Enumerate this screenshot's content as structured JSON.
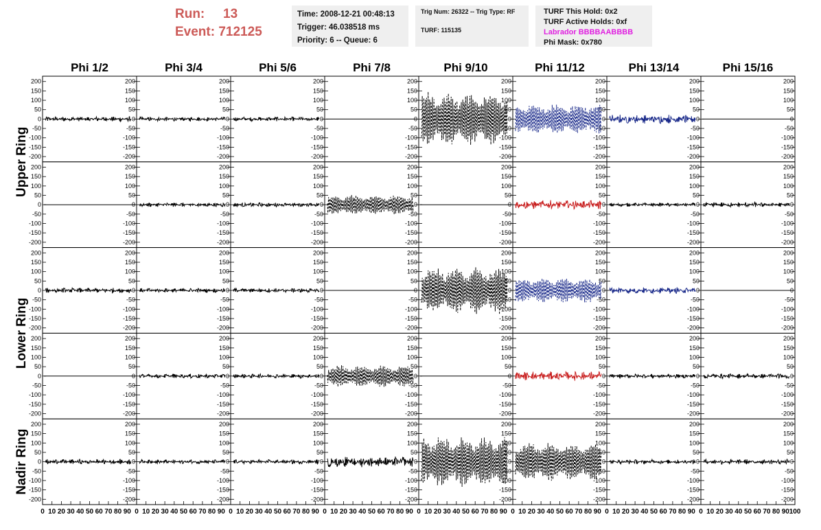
{
  "header": {
    "run_label": "Run:",
    "run_value": "13",
    "event_label": "Event:",
    "event_value": "712125"
  },
  "info_box_1": {
    "line1": "Time: 2008-12-21 00:48:13",
    "line2": "Trigger: 46.038518 ms",
    "line3": "Priority: 6 -- Queue: 6"
  },
  "info_box_2": {
    "line1": "Trig Num: 26322 -- Trig Type: RF",
    "line2": "TURF: 115135"
  },
  "info_box_3": {
    "line1": "TURF This Hold: 0x2",
    "line2": "TURF Active Holds: 0xf",
    "line3": "Labrador BBBBAABBBB",
    "line4": "Phi Mask: 0x780"
  },
  "colors": {
    "title": "#cc5a57",
    "labrador": "#e020e0",
    "blue": "#1a2a8a",
    "red": "#c81e1e",
    "black": "#000000"
  },
  "chart_data": {
    "type": "line",
    "columns": [
      "Phi 1/2",
      "Phi 3/4",
      "Phi 5/6",
      "Phi 7/8",
      "Phi 9/10",
      "Phi 11/12",
      "Phi 13/14",
      "Phi 15/16"
    ],
    "row_groups": [
      "Upper Ring",
      "Lower Ring",
      "Nadir Ring"
    ],
    "rows": 5,
    "ylim": [
      -210,
      210
    ],
    "yticks": [
      200,
      150,
      100,
      50,
      0,
      -50,
      -100,
      -150,
      -200
    ],
    "xlim": [
      0,
      100
    ],
    "xticks": [
      0,
      10,
      20,
      30,
      40,
      50,
      60,
      70,
      80,
      90,
      100
    ],
    "grid": [
      [
        {
          "style": "solid",
          "color": "black",
          "amp": 14
        },
        {
          "style": "solid",
          "color": "black",
          "amp": 12
        },
        {
          "style": "solid",
          "color": "black",
          "amp": 12
        },
        {
          "style": "flat",
          "color": "black",
          "amp": 0
        },
        {
          "style": "dashed",
          "color": "black",
          "amp": 150
        },
        {
          "style": "dashed",
          "color": "blue",
          "amp": 85
        },
        {
          "style": "solid",
          "color": "blue",
          "amp": 25
        },
        {
          "style": "flat",
          "color": "black",
          "amp": 0
        }
      ],
      [
        {
          "style": "flat",
          "color": "black",
          "amp": 0
        },
        {
          "style": "solid",
          "color": "black",
          "amp": 12
        },
        {
          "style": "solid",
          "color": "black",
          "amp": 12
        },
        {
          "style": "dashed",
          "color": "black",
          "amp": 55
        },
        {
          "style": "flat",
          "color": "black",
          "amp": 0
        },
        {
          "style": "solid",
          "color": "red",
          "amp": 25
        },
        {
          "style": "solid",
          "color": "black",
          "amp": 10
        },
        {
          "style": "solid",
          "color": "black",
          "amp": 14
        }
      ],
      [
        {
          "style": "solid",
          "color": "black",
          "amp": 14
        },
        {
          "style": "solid",
          "color": "black",
          "amp": 12
        },
        {
          "style": "solid",
          "color": "black",
          "amp": 12
        },
        {
          "style": "flat",
          "color": "black",
          "amp": 0
        },
        {
          "style": "dashed",
          "color": "black",
          "amp": 130
        },
        {
          "style": "dashed",
          "color": "blue",
          "amp": 70
        },
        {
          "style": "solid",
          "color": "blue",
          "amp": 18
        },
        {
          "style": "flat",
          "color": "black",
          "amp": 0
        }
      ],
      [
        {
          "style": "flat",
          "color": "black",
          "amp": 0
        },
        {
          "style": "solid",
          "color": "black",
          "amp": 12
        },
        {
          "style": "solid",
          "color": "black",
          "amp": 12
        },
        {
          "style": "dashed",
          "color": "black",
          "amp": 60
        },
        {
          "style": "flat",
          "color": "black",
          "amp": 0
        },
        {
          "style": "solid",
          "color": "red",
          "amp": 25
        },
        {
          "style": "solid",
          "color": "black",
          "amp": 12
        },
        {
          "style": "solid",
          "color": "black",
          "amp": 14
        }
      ],
      [
        {
          "style": "solid",
          "color": "black",
          "amp": 14
        },
        {
          "style": "solid",
          "color": "black",
          "amp": 12
        },
        {
          "style": "solid",
          "color": "black",
          "amp": 12
        },
        {
          "style": "solid",
          "color": "black",
          "amp": 30
        },
        {
          "style": "dashed",
          "color": "black",
          "amp": 140
        },
        {
          "style": "dashed",
          "color": "black",
          "amp": 110
        },
        {
          "style": "solid",
          "color": "black",
          "amp": 12
        },
        {
          "style": "solid",
          "color": "black",
          "amp": 14
        }
      ]
    ]
  }
}
